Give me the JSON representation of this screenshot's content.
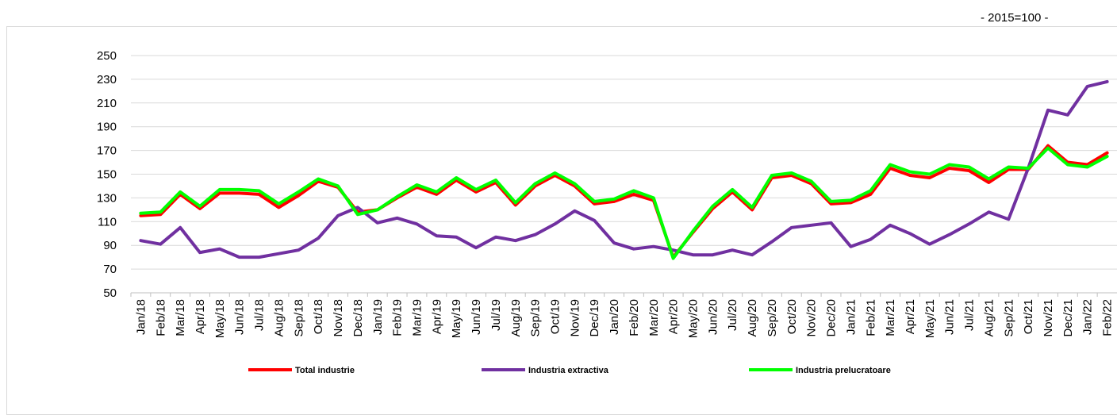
{
  "unit_note": "- 2015=100 -",
  "chart_data": {
    "type": "line",
    "ylim": [
      50,
      250
    ],
    "yticks": [
      50,
      70,
      90,
      110,
      130,
      150,
      170,
      190,
      210,
      230,
      250
    ],
    "grid": "horizontal",
    "legend_position": "bottom",
    "categories": [
      "Jan/18",
      "Feb/18",
      "Mar/18",
      "Apr/18",
      "May/18",
      "Jun/18",
      "Jul/18",
      "Aug/18",
      "Sep/18",
      "Oct/18",
      "Nov/18",
      "Dec/18",
      "Jan/19",
      "Feb/19",
      "Mar/19",
      "Apr/19",
      "May/19",
      "Jun/19",
      "Jul/19",
      "Aug/19",
      "Sep/19",
      "Oct/19",
      "Nov/19",
      "Dec/19",
      "Jan/20",
      "Feb/20",
      "Mar/20",
      "Apr/20",
      "May/20",
      "Jun/20",
      "Jul/20",
      "Aug/20",
      "Sep/20",
      "Oct/20",
      "Nov/20",
      "Dec/20",
      "Jan/21",
      "Feb/21",
      "Mar/21",
      "Apr/21",
      "May/21",
      "Jun/21",
      "Jul/21",
      "Aug/21",
      "Sep/21",
      "Oct/21",
      "Nov/21",
      "Dec/21",
      "Jan/22",
      "Feb/22"
    ],
    "series": [
      {
        "name": "Total industrie",
        "color": "#ff0000",
        "values": [
          115,
          116,
          133,
          121,
          134,
          134,
          133,
          122,
          132,
          144,
          139,
          118,
          120,
          130,
          139,
          133,
          145,
          135,
          143,
          124,
          140,
          149,
          140,
          125,
          127,
          133,
          128,
          80,
          101,
          121,
          135,
          120,
          147,
          149,
          142,
          125,
          126,
          133,
          155,
          149,
          147,
          155,
          153,
          143,
          154,
          154,
          174,
          160,
          158,
          168
        ]
      },
      {
        "name": "Industria extractiva",
        "color": "#7030a0",
        "values": [
          94,
          91,
          105,
          84,
          87,
          80,
          80,
          83,
          86,
          96,
          115,
          122,
          109,
          113,
          108,
          98,
          97,
          88,
          97,
          94,
          99,
          108,
          119,
          111,
          92,
          87,
          89,
          86,
          82,
          82,
          86,
          82,
          93,
          105,
          107,
          109,
          89,
          95,
          107,
          100,
          91,
          99,
          108,
          118,
          112,
          155,
          204,
          200,
          224,
          228
        ]
      },
      {
        "name": "Industria prelucratoare",
        "color": "#00ff00",
        "values": [
          117,
          118,
          135,
          123,
          137,
          137,
          136,
          125,
          135,
          146,
          140,
          116,
          120,
          131,
          141,
          135,
          147,
          137,
          145,
          126,
          142,
          151,
          142,
          127,
          129,
          136,
          130,
          79,
          102,
          123,
          137,
          122,
          149,
          151,
          144,
          127,
          128,
          136,
          158,
          152,
          150,
          158,
          156,
          146,
          156,
          155,
          172,
          158,
          156,
          165
        ]
      }
    ]
  }
}
